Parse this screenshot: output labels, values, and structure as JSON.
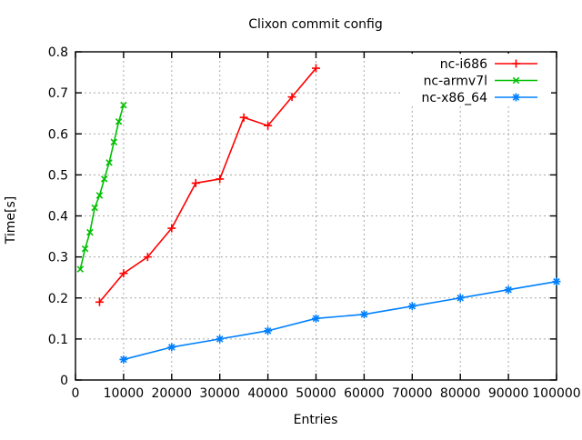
{
  "chart_data": {
    "type": "line",
    "title": "Clixon commit config",
    "xlabel": "Entries",
    "ylabel": "Time[s]",
    "xlim": [
      0,
      100000
    ],
    "ylim": [
      0,
      0.8
    ],
    "xticks": [
      0,
      10000,
      20000,
      30000,
      40000,
      50000,
      60000,
      70000,
      80000,
      90000,
      100000
    ],
    "yticks": [
      0,
      0.1,
      0.2,
      0.3,
      0.4,
      0.5,
      0.6,
      0.7,
      0.8
    ],
    "grid": true,
    "legend_position": "top-right",
    "colors": {
      "background": "#ffffff",
      "border": "#000000",
      "grid": "#a8a8a8"
    },
    "series": [
      {
        "name": "nc-i686",
        "color": "#ff0000",
        "marker": "plus",
        "x": [
          5000,
          10000,
          15000,
          20000,
          25000,
          30000,
          35000,
          40000,
          45000,
          50000
        ],
        "y": [
          0.19,
          0.26,
          0.3,
          0.37,
          0.48,
          0.49,
          0.64,
          0.62,
          0.69,
          0.76
        ]
      },
      {
        "name": "nc-armv7l",
        "color": "#00c000",
        "marker": "cross",
        "x": [
          1000,
          2000,
          3000,
          4000,
          5000,
          6000,
          7000,
          8000,
          9000,
          10000
        ],
        "y": [
          0.27,
          0.32,
          0.36,
          0.42,
          0.45,
          0.49,
          0.53,
          0.58,
          0.63,
          0.67
        ]
      },
      {
        "name": "nc-x86_64",
        "color": "#0080ff",
        "marker": "asterisk",
        "x": [
          10000,
          20000,
          30000,
          40000,
          50000,
          60000,
          70000,
          80000,
          90000,
          100000
        ],
        "y": [
          0.05,
          0.08,
          0.1,
          0.12,
          0.15,
          0.16,
          0.18,
          0.2,
          0.22,
          0.24
        ]
      }
    ]
  }
}
